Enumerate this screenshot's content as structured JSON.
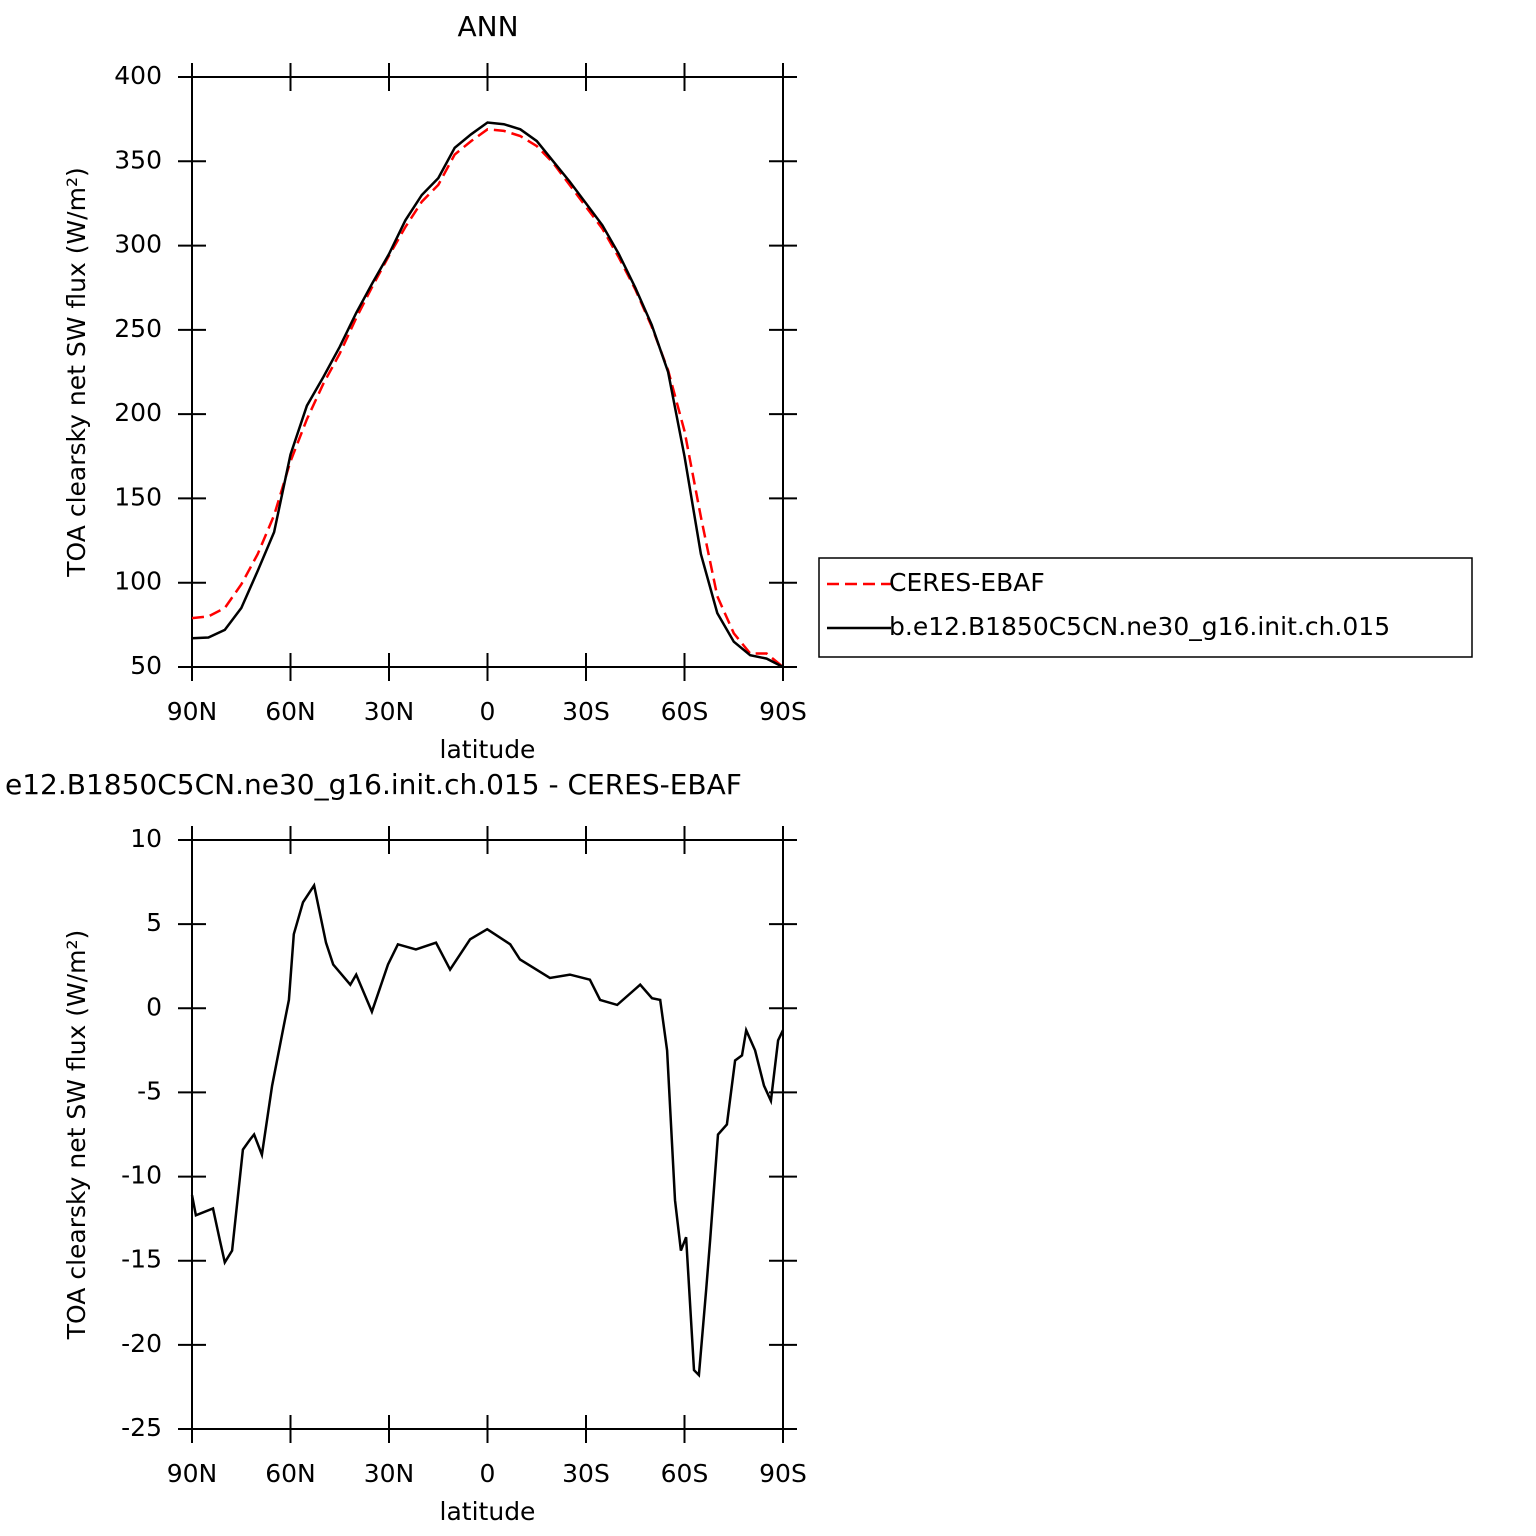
{
  "chart_data": [
    {
      "type": "line",
      "title": "ANN",
      "xlabel": "latitude",
      "ylabel": "TOA clearsky net SW flux (W/m²)",
      "x": [
        90,
        85,
        80,
        75,
        70,
        65,
        60,
        55,
        50,
        45,
        40,
        35,
        30,
        25,
        20,
        15,
        10,
        5,
        0,
        -5,
        -10,
        -15,
        -20,
        -25,
        -30,
        -35,
        -40,
        -45,
        -50,
        -55,
        -60,
        -65,
        -70,
        -75,
        -80,
        -85,
        -90
      ],
      "series": [
        {
          "name": "CERES-EBAF",
          "color": "#ff0000",
          "style": "dashed",
          "values": [
            79,
            80,
            85,
            99,
            117,
            140,
            172,
            197,
            218,
            236,
            257,
            276,
            294,
            311,
            326,
            336,
            354,
            362,
            369,
            368,
            365,
            359,
            349,
            336,
            323,
            310,
            293,
            274,
            252,
            226,
            190,
            139,
            92,
            70,
            58,
            58,
            50
          ]
        },
        {
          "name": "b.e12.B1850C5CN.ne30_g16.init.ch.015",
          "color": "#000000",
          "style": "solid",
          "values": [
            67,
            67.5,
            72,
            85,
            107,
            130,
            176,
            205,
            222,
            240,
            260,
            278,
            295,
            315,
            330,
            340,
            358,
            366,
            373,
            372,
            369,
            362,
            350,
            338,
            325,
            312,
            295,
            275,
            253,
            225,
            175,
            117,
            82,
            65,
            57,
            55,
            50
          ]
        }
      ],
      "xlim": [
        90,
        -90
      ],
      "xticks": [
        {
          "value": 90,
          "label": "90N"
        },
        {
          "value": 60,
          "label": "60N"
        },
        {
          "value": 30,
          "label": "30N"
        },
        0,
        {
          "value": -30,
          "label": "30S"
        },
        {
          "value": -60,
          "label": "60S"
        },
        {
          "value": -90,
          "label": "90S"
        }
      ],
      "ylim": [
        50,
        400
      ],
      "yticks": [
        50,
        100,
        150,
        200,
        250,
        300,
        350,
        400
      ],
      "legend": "right"
    },
    {
      "type": "line",
      "title": "e12.B1850C5CN.ne30_g16.init.ch.015 - CERES-EBAF",
      "xlabel": "latitude",
      "ylabel": "TOA clearsky net SW flux (W/m²)",
      "x": [
        90,
        88.8,
        83.6,
        81.5,
        80,
        77.8,
        74.5,
        72.3,
        71.1,
        68.7,
        65.6,
        62,
        60.5,
        59,
        56.2,
        52.8,
        49.2,
        47,
        41.8,
        40,
        35.2,
        30.3,
        27.3,
        21.8,
        15.7,
        11.4,
        5.3,
        0.1,
        -6.9,
        -9.9,
        -19,
        -25.1,
        -31.2,
        -34.3,
        -39.5,
        -46.5,
        -50.1,
        -52.6,
        -54.7,
        -57.1,
        -58.9,
        -60.5,
        -62.9,
        -64.4,
        -66.6,
        -67.8,
        -70.2,
        -72.9,
        -75.4,
        -77.5,
        -78.8,
        -81.5,
        -84.2,
        -86.3,
        -88.5,
        -90
      ],
      "values": [
        -11.1,
        -12.3,
        -11.9,
        -13.8,
        -15.1,
        -14.4,
        -8.4,
        -7.8,
        -7.5,
        -8.7,
        -4.6,
        -1.0,
        0.5,
        4.4,
        6.3,
        7.3,
        3.9,
        2.6,
        1.4,
        2.0,
        -0.2,
        2.6,
        3.8,
        3.5,
        3.9,
        2.3,
        4.1,
        4.7,
        3.8,
        2.9,
        1.8,
        2.0,
        1.7,
        0.5,
        0.2,
        1.4,
        0.6,
        0.5,
        -2.5,
        -11.4,
        -14.4,
        -13.6,
        -21.5,
        -21.8,
        -16.7,
        -13.8,
        -7.5,
        -6.9,
        -3.1,
        -2.8,
        -1.3,
        -2.5,
        -4.6,
        -5.5,
        -1.9,
        -1.3
      ],
      "color": "#000000",
      "xlim": [
        90,
        -90
      ],
      "xticks": [
        {
          "value": 90,
          "label": "90N"
        },
        {
          "value": 60,
          "label": "60N"
        },
        {
          "value": 30,
          "label": "30N"
        },
        0,
        {
          "value": -30,
          "label": "30S"
        },
        {
          "value": -60,
          "label": "60S"
        },
        {
          "value": -90,
          "label": "90S"
        }
      ],
      "ylim": [
        -25,
        10
      ],
      "yticks": [
        -25,
        -20,
        -15,
        -10,
        -5,
        0,
        5,
        10
      ]
    }
  ]
}
